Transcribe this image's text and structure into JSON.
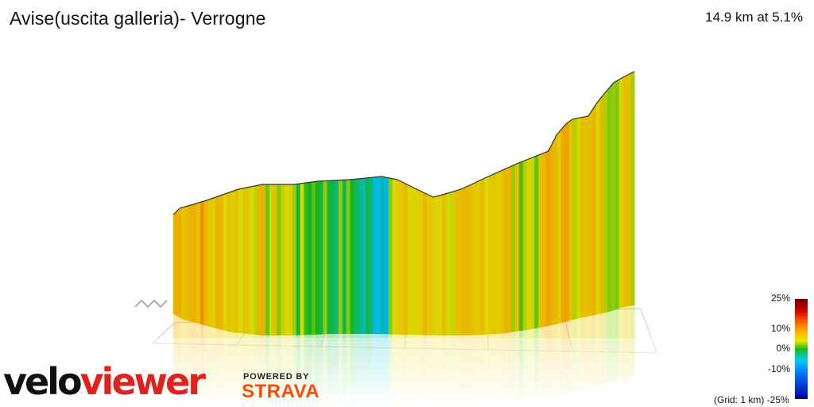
{
  "title": "Avise(uscita galleria)- Verrogne",
  "summary": "14.9 km at 5.1%",
  "brand": {
    "velo": "velo",
    "viewer": "viewer",
    "powered": "POWERED BY",
    "strava": "STRAVA"
  },
  "legend": {
    "labels": [
      {
        "text": "25%",
        "key": "p25"
      },
      {
        "text": "10%",
        "key": "p10"
      },
      {
        "text": "0%",
        "key": "p0"
      },
      {
        "text": "-10%",
        "key": "m10"
      }
    ],
    "bottom": "-25%",
    "grid_note": "(Grid: 1 km)"
  },
  "chart_data": {
    "type": "area",
    "title": "Avise(uscita galleria)- Verrogne",
    "distance_km": 14.9,
    "avg_gradient_pct": 5.1,
    "gradient_scale": [
      -25,
      -10,
      0,
      10,
      25
    ],
    "grid_km": 1,
    "profile": [
      {
        "segment": 1,
        "gradient": 9
      },
      {
        "segment": 2,
        "gradient": 7
      },
      {
        "segment": 3,
        "gradient": 6
      },
      {
        "segment": 4,
        "gradient": 4
      },
      {
        "segment": 5,
        "gradient": 1
      },
      {
        "segment": 6,
        "gradient": 0
      },
      {
        "segment": 7,
        "gradient": -3
      },
      {
        "segment": 8,
        "gradient": 5
      },
      {
        "segment": 9,
        "gradient": 6
      },
      {
        "segment": 10,
        "gradient": 5
      },
      {
        "segment": 11,
        "gradient": 7
      },
      {
        "segment": 12,
        "gradient": 4
      },
      {
        "segment": 13,
        "gradient": 8
      },
      {
        "segment": 14,
        "gradient": 6
      },
      {
        "segment": 15,
        "gradient": 5
      }
    ]
  }
}
